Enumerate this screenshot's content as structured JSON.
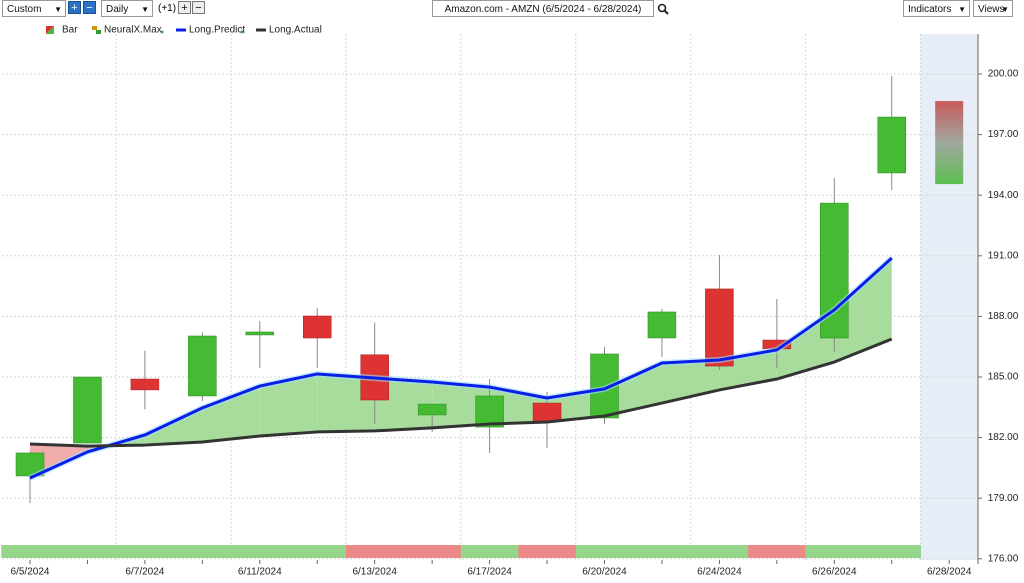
{
  "toolbar": {
    "range_mode": "Custom",
    "period": "Daily",
    "offset": "(+1)",
    "indicators": "Indicators",
    "views": "Views"
  },
  "chart_data": {
    "type": "candlestick",
    "title": "Amazon.com - AMZN (6/5/2024 - 6/28/2024)",
    "categories": [
      "6/5/2024",
      null,
      "6/7/2024",
      null,
      "6/11/2024",
      null,
      "6/13/2024",
      null,
      "6/17/2024",
      null,
      "6/20/2024",
      null,
      "6/24/2024",
      null,
      "6/26/2024",
      null,
      "6/28/2024"
    ],
    "ohlc": {
      "name": "Bar",
      "up_color": "#44bb33",
      "down_color": "#dd3333",
      "open": [
        180.1,
        181.73,
        184.9,
        184.06,
        187.08,
        188.02,
        186.1,
        183.12,
        182.52,
        183.71,
        182.97,
        186.93,
        189.36,
        186.83,
        186.93,
        195.1,
        null
      ],
      "high": [
        181.3,
        185.0,
        186.3,
        187.2,
        187.77,
        188.4,
        187.7,
        183.66,
        184.9,
        184.26,
        186.49,
        188.37,
        191.04,
        188.86,
        194.85,
        199.9,
        null
      ],
      "low": [
        178.76,
        181.7,
        183.4,
        183.8,
        185.45,
        185.45,
        182.67,
        182.28,
        181.24,
        181.49,
        182.67,
        186.0,
        185.35,
        185.45,
        186.24,
        194.26,
        null
      ],
      "close": [
        181.24,
        185.0,
        184.36,
        187.03,
        187.23,
        186.93,
        183.86,
        183.66,
        184.06,
        182.82,
        186.14,
        188.22,
        185.54,
        186.39,
        193.61,
        197.87,
        null
      ]
    },
    "prediction": {
      "name": "NeuralX.Max",
      "high": 198.66,
      "low": 194.55
    },
    "series": [
      {
        "name": "Long.Predict",
        "color": "#0a1ee6",
        "values": [
          180.0,
          181.29,
          182.13,
          183.47,
          184.55,
          185.15,
          184.95,
          184.75,
          184.5,
          183.96,
          184.41,
          185.69,
          185.84,
          186.34,
          188.32,
          190.89,
          null
        ]
      },
      {
        "name": "Long.Actual",
        "color": "#333333",
        "values": [
          181.68,
          181.58,
          181.63,
          181.78,
          182.08,
          182.28,
          182.33,
          182.48,
          182.67,
          182.77,
          183.07,
          183.71,
          184.36,
          184.9,
          185.74,
          186.88,
          null
        ]
      }
    ],
    "signal_colors": [
      "#96d68a",
      "#96d68a",
      "#96d68a",
      "#96d68a",
      "#96d68a",
      "#96d68a",
      "#ec8a8a",
      "#ec8a8a",
      "#96d68a",
      "#ec8a8a",
      "#96d68a",
      "#96d68a",
      "#96d68a",
      "#ec8a8a",
      "#96d68a",
      "#96d68a",
      null
    ],
    "ylim": [
      175.94,
      201.98
    ],
    "yticks": [
      {
        "value": 176,
        "label": "176.00"
      },
      {
        "value": 179,
        "label": "179.00"
      },
      {
        "value": 182,
        "label": "182.00"
      },
      {
        "value": 185,
        "label": "185.00"
      },
      {
        "value": 188,
        "label": "188.00"
      },
      {
        "value": 191,
        "label": "191.00"
      },
      {
        "value": 194,
        "label": "194.00"
      },
      {
        "value": 197,
        "label": "197.00"
      },
      {
        "value": 200,
        "label": "200.00"
      }
    ],
    "grid": true
  }
}
